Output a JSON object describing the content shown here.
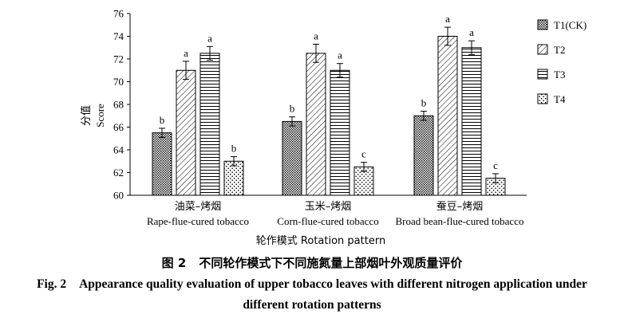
{
  "chart_data": {
    "type": "bar",
    "ylabel_cn": "分值",
    "ylabel_en": "Score",
    "xlabel": "轮作模式 Rotation pattern",
    "ylim": [
      60,
      76
    ],
    "yticks": [
      60,
      62,
      64,
      66,
      68,
      70,
      72,
      74,
      76
    ],
    "categories": [
      {
        "cn": "油菜–烤烟",
        "en": "Rape-flue-cured tobacco"
      },
      {
        "cn": "玉米–烤烟",
        "en": "Corn-flue-cured tobacco"
      },
      {
        "cn": "蚕豆–烤烟",
        "en": "Broad bean-flue-cured tobacco"
      }
    ],
    "series": [
      {
        "name": "T1(CK)",
        "pattern": "dense-dots",
        "values": [
          65.5,
          66.5,
          67.0
        ],
        "errors": [
          0.4,
          0.4,
          0.4
        ],
        "letters": [
          "b",
          "b",
          "b"
        ]
      },
      {
        "name": "T2",
        "pattern": "diagonal",
        "values": [
          71.0,
          72.5,
          74.0
        ],
        "errors": [
          0.8,
          0.8,
          0.8
        ],
        "letters": [
          "a",
          "a",
          "a"
        ]
      },
      {
        "name": "T3",
        "pattern": "horizontal",
        "values": [
          72.5,
          71.0,
          73.0
        ],
        "errors": [
          0.6,
          0.6,
          0.6
        ],
        "letters": [
          "a",
          "a",
          "a"
        ]
      },
      {
        "name": "T4",
        "pattern": "sparse-dots",
        "values": [
          63.0,
          62.5,
          61.5
        ],
        "errors": [
          0.4,
          0.4,
          0.4
        ],
        "letters": [
          "b",
          "c",
          "c"
        ]
      }
    ],
    "legend_position": "right",
    "grid": false
  },
  "caption": {
    "cn_fig": "图 2",
    "cn_text": "不同轮作模式下不同施氮量上部烟叶外观质量评价",
    "en_fig": "Fig. 2",
    "en_text_line1": "Appearance quality evaluation of upper tobacco leaves with different nitrogen application under",
    "en_text_line2": "different rotation patterns"
  }
}
